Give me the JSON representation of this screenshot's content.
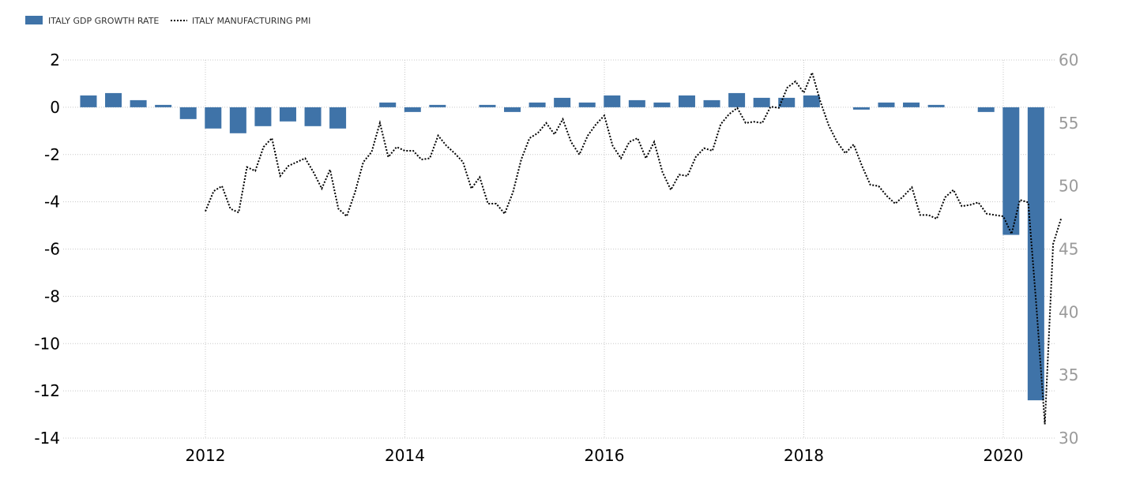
{
  "colors": {
    "bar": "#3f73a8",
    "line": "#000000",
    "grid": "#c8c8c8",
    "right_axis_text": "#9a9a9a"
  },
  "legend": {
    "gdp_label": "ITALY GDP GROWTH RATE",
    "pmi_label": "ITALY MANUFACTURING PMI"
  },
  "chart_data": {
    "type": "bar+line",
    "x_ticks": [
      "2012",
      "2014",
      "2016",
      "2018",
      "2020"
    ],
    "y_left": {
      "ticks": [
        "2",
        "0",
        "-2",
        "-4",
        "-6",
        "-8",
        "-10",
        "-12",
        "-14"
      ],
      "range": [
        -14,
        2
      ]
    },
    "y_right": {
      "ticks": [
        "60",
        "55",
        "50",
        "45",
        "40",
        "35",
        "30"
      ],
      "range": [
        30,
        60
      ]
    },
    "grid": true,
    "legend_position": "top-left",
    "series": [
      {
        "name": "ITALY GDP GROWTH RATE",
        "type": "bar",
        "axis": "left",
        "x": [
          "2010-Q4",
          "2011-Q1",
          "2011-Q2",
          "2011-Q3",
          "2011-Q4",
          "2012-Q1",
          "2012-Q2",
          "2012-Q3",
          "2012-Q4",
          "2013-Q1",
          "2013-Q2",
          "2013-Q3",
          "2013-Q4",
          "2014-Q1",
          "2014-Q2",
          "2014-Q3",
          "2014-Q4",
          "2015-Q1",
          "2015-Q2",
          "2015-Q3",
          "2015-Q4",
          "2016-Q1",
          "2016-Q2",
          "2016-Q3",
          "2016-Q4",
          "2017-Q1",
          "2017-Q2",
          "2017-Q3",
          "2017-Q4",
          "2018-Q1",
          "2018-Q2",
          "2018-Q3",
          "2018-Q4",
          "2019-Q1",
          "2019-Q2",
          "2019-Q3",
          "2019-Q4",
          "2020-Q1",
          "2020-Q2"
        ],
        "values": [
          0.5,
          0.6,
          0.3,
          0.1,
          -0.5,
          -0.9,
          -1.1,
          -0.8,
          -0.6,
          -0.8,
          -0.9,
          0.0,
          0.2,
          -0.2,
          0.1,
          0.0,
          0.1,
          -0.2,
          0.2,
          0.4,
          0.2,
          0.5,
          0.3,
          0.2,
          0.5,
          0.3,
          0.6,
          0.4,
          0.4,
          0.5,
          0.0,
          -0.1,
          0.2,
          0.2,
          0.1,
          0.0,
          -0.2,
          -5.4,
          -12.4
        ]
      },
      {
        "name": "ITALY MANUFACTURING PMI",
        "type": "line",
        "style": "dotted",
        "axis": "right",
        "x_start": "2012-01",
        "x_step": "month",
        "values": [
          48.0,
          49.6,
          50.0,
          48.2,
          47.9,
          51.5,
          51.2,
          53.1,
          53.8,
          50.8,
          51.6,
          51.9,
          52.2,
          51.1,
          49.8,
          51.3,
          48.2,
          47.6,
          49.5,
          51.9,
          52.7,
          55.0,
          52.3,
          53.1,
          52.8,
          52.8,
          52.1,
          52.2,
          54.0,
          53.2,
          52.6,
          51.9,
          49.8,
          50.7,
          48.6,
          48.6,
          47.8,
          49.5,
          52.1,
          53.8,
          54.2,
          55.0,
          54.1,
          55.3,
          53.5,
          52.5,
          54.0,
          54.9,
          55.6,
          53.2,
          52.2,
          53.5,
          53.8,
          52.2,
          53.5,
          51.1,
          49.7,
          50.9,
          50.8,
          52.3,
          53.0,
          52.8,
          54.9,
          55.7,
          56.2,
          55.0,
          55.1,
          55.0,
          56.3,
          56.2,
          57.8,
          58.3,
          57.4,
          59.0,
          56.7,
          54.8,
          53.5,
          52.6,
          53.3,
          51.6,
          50.1,
          50.0,
          49.2,
          48.6,
          49.2,
          49.9,
          47.7,
          47.7,
          47.4,
          49.1,
          49.7,
          48.4,
          48.5,
          48.7,
          47.8,
          47.7,
          47.6,
          46.2,
          48.9,
          48.7,
          40.3,
          31.1,
          45.4,
          47.5
        ]
      }
    ]
  }
}
